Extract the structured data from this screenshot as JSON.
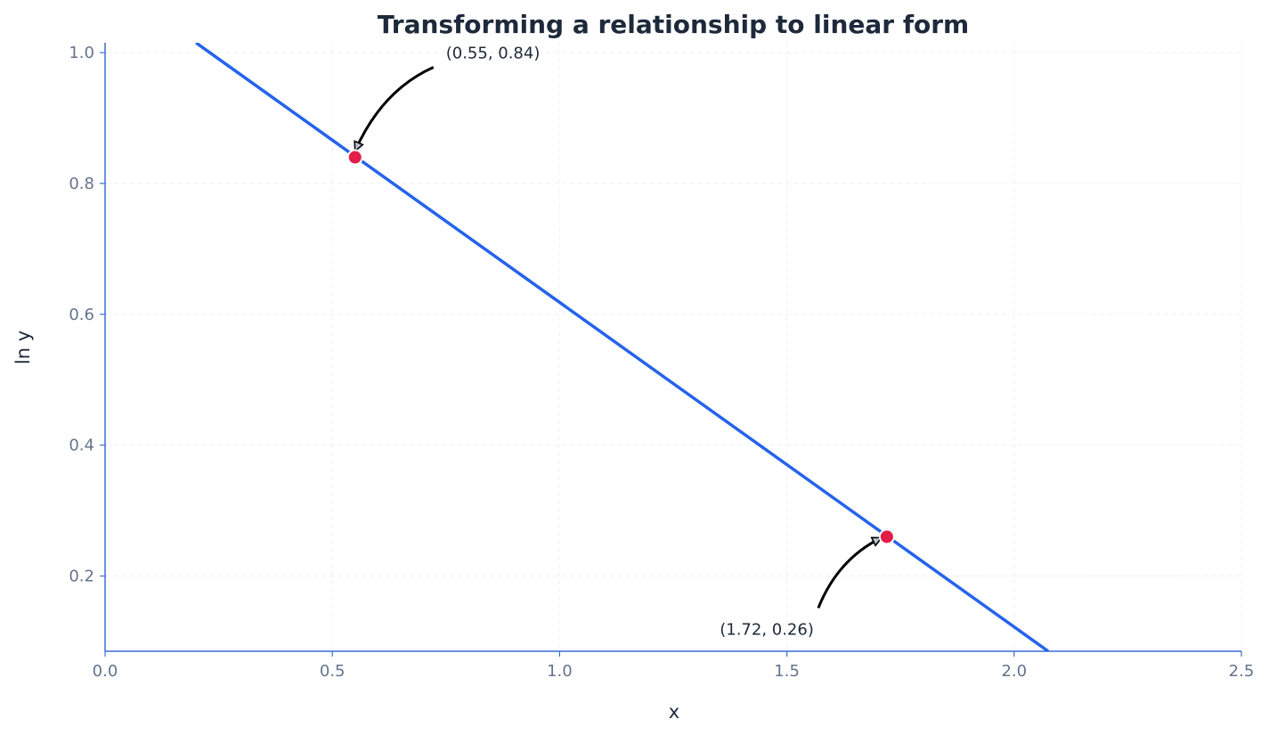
{
  "chart_data": {
    "type": "line",
    "title": "Transforming a relationship to linear form",
    "xlabel": "x",
    "ylabel": "ln y",
    "xlim": [
      0.0,
      2.5
    ],
    "ylim": [
      0.085,
      1.015
    ],
    "x_ticks": [
      "0.0",
      "0.5",
      "1.0",
      "1.5",
      "2.0",
      "2.5"
    ],
    "y_ticks": [
      "0.2",
      "0.4",
      "0.6",
      "0.8",
      "1.0"
    ],
    "grid": true,
    "series": [
      {
        "x": [
          0.2,
          2.075
        ],
        "y": [
          1.015,
          0.085
        ]
      }
    ],
    "points": [
      {
        "x": 0.55,
        "y": 0.84,
        "label": "(0.55, 0.84)",
        "label_position": "upper-right"
      },
      {
        "x": 1.72,
        "y": 0.26,
        "label": "(1.72, 0.26)",
        "label_position": "lower-left"
      }
    ],
    "colors": {
      "line": "#2563eb",
      "points": "#e11d48",
      "axes": "#3b6fd4",
      "grid": "#eef0f4"
    }
  }
}
